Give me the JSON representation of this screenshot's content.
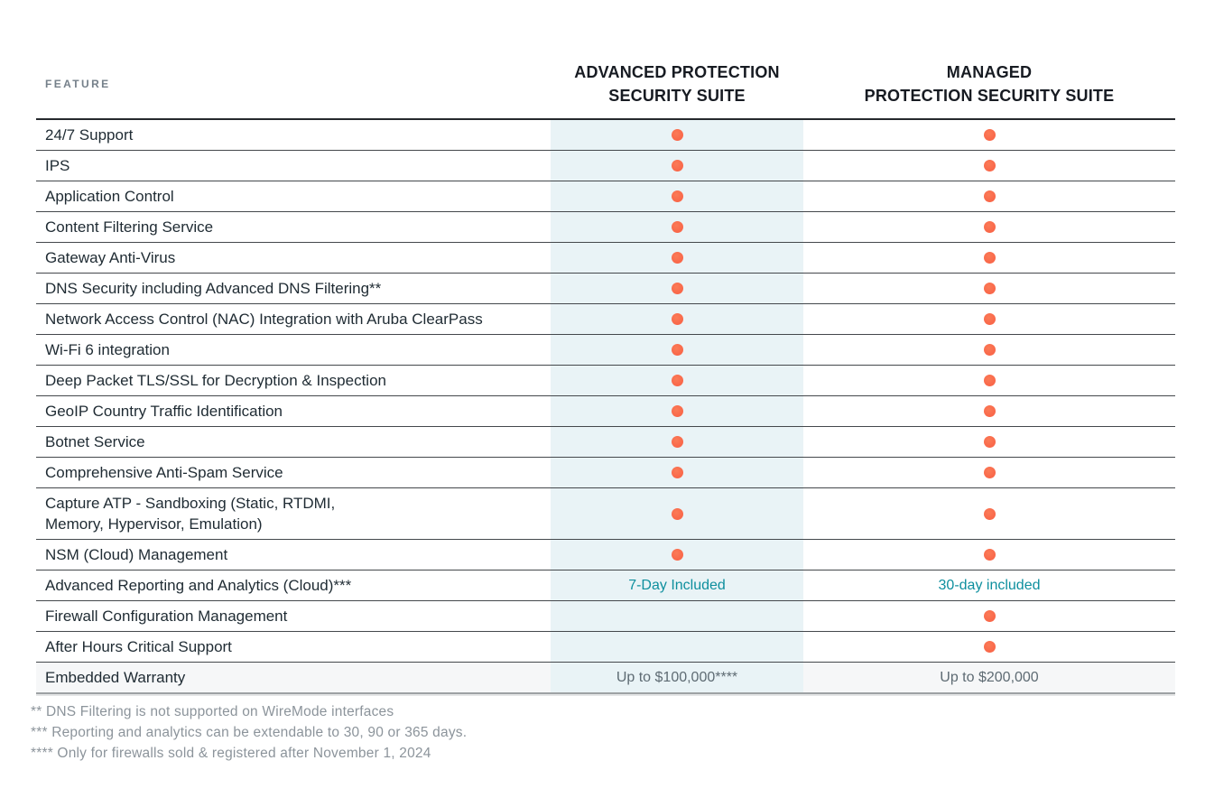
{
  "colors": {
    "accent_dot": "#F9684A",
    "column_highlight": "#E9F3F6",
    "teal_text": "#0E8F9E",
    "value_text": "#5E6B73",
    "feature_text": "#1F2B33",
    "header_text": "#171B22",
    "label_text": "#75808A",
    "footnote_text": "#8C949B",
    "border_dark": "#26292D",
    "border_row": "#44484C",
    "border_bottom": "#9EA2A4",
    "row_tint": "#F6F7F8"
  },
  "header": {
    "feature_label": "FEATURE",
    "columns": [
      "ADVANCED PROTECTION\nSECURITY SUITE",
      "MANAGED\nPROTECTION SECURITY SUITE"
    ]
  },
  "legend": {
    "dot_meaning": "included"
  },
  "table": {
    "rows": [
      {
        "feature": "24/7 Support",
        "cells": [
          {
            "type": "dot"
          },
          {
            "type": "dot"
          }
        ]
      },
      {
        "feature": "IPS",
        "cells": [
          {
            "type": "dot"
          },
          {
            "type": "dot"
          }
        ]
      },
      {
        "feature": "Application Control",
        "cells": [
          {
            "type": "dot"
          },
          {
            "type": "dot"
          }
        ]
      },
      {
        "feature": "Content Filtering Service",
        "cells": [
          {
            "type": "dot"
          },
          {
            "type": "dot"
          }
        ]
      },
      {
        "feature": "Gateway Anti-Virus",
        "cells": [
          {
            "type": "dot"
          },
          {
            "type": "dot"
          }
        ]
      },
      {
        "feature": "DNS Security including Advanced DNS Filtering**",
        "cells": [
          {
            "type": "dot"
          },
          {
            "type": "dot"
          }
        ]
      },
      {
        "feature": "Network Access Control (NAC) Integration with Aruba ClearPass",
        "cells": [
          {
            "type": "dot"
          },
          {
            "type": "dot"
          }
        ]
      },
      {
        "feature": "Wi-Fi 6 integration",
        "cells": [
          {
            "type": "dot"
          },
          {
            "type": "dot"
          }
        ]
      },
      {
        "feature": "Deep Packet TLS/SSL for Decryption & Inspection",
        "cells": [
          {
            "type": "dot"
          },
          {
            "type": "dot"
          }
        ]
      },
      {
        "feature": "GeoIP Country Traffic Identification",
        "cells": [
          {
            "type": "dot"
          },
          {
            "type": "dot"
          }
        ]
      },
      {
        "feature": "Botnet Service",
        "cells": [
          {
            "type": "dot"
          },
          {
            "type": "dot"
          }
        ]
      },
      {
        "feature": "Comprehensive Anti-Spam Service",
        "cells": [
          {
            "type": "dot"
          },
          {
            "type": "dot"
          }
        ]
      },
      {
        "feature": "Capture ATP -  Sandboxing (Static, RTDMI,\nMemory, Hypervisor, Emulation)",
        "cells": [
          {
            "type": "dot"
          },
          {
            "type": "dot"
          }
        ]
      },
      {
        "feature": "NSM (Cloud) Management",
        "cells": [
          {
            "type": "dot"
          },
          {
            "type": "dot"
          }
        ]
      },
      {
        "feature": "Advanced Reporting and Analytics (Cloud)***",
        "cells": [
          {
            "type": "text",
            "value": "7-Day Included",
            "color": "teal"
          },
          {
            "type": "text",
            "value": "30-day included",
            "color": "teal"
          }
        ]
      },
      {
        "feature": "Firewall Configuration Management",
        "cells": [
          {
            "type": "empty"
          },
          {
            "type": "dot"
          }
        ]
      },
      {
        "feature": "After Hours Critical Support",
        "cells": [
          {
            "type": "empty"
          },
          {
            "type": "dot"
          }
        ]
      },
      {
        "feature": "Embedded Warranty",
        "cells": [
          {
            "type": "text",
            "value": "Up to $100,000****",
            "color": "gray"
          },
          {
            "type": "text",
            "value": "Up to $200,000",
            "color": "gray"
          }
        ]
      }
    ]
  },
  "footnotes": [
    "** DNS Filtering is not supported on WireMode interfaces",
    "*** Reporting and analytics can be extendable to 30, 90 or 365 days.",
    "**** Only for firewalls sold & registered after November 1, 2024"
  ]
}
